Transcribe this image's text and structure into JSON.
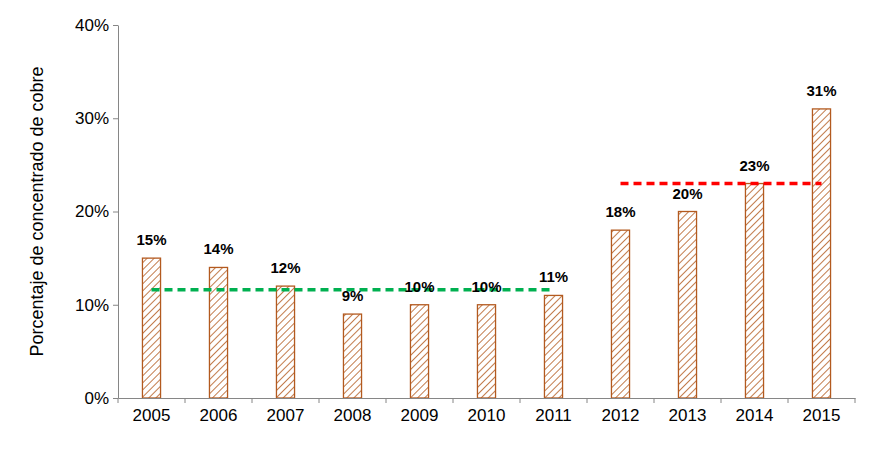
{
  "chart_data": {
    "type": "bar",
    "y_label": "Porcentaje de concentrado de cobre",
    "categories": [
      "2005",
      "2006",
      "2007",
      "2008",
      "2009",
      "2010",
      "2011",
      "2012",
      "2013",
      "2014",
      "2015"
    ],
    "values": [
      15,
      14,
      12,
      9,
      10,
      10,
      11,
      18,
      20,
      23,
      31
    ],
    "value_labels": [
      "15%",
      "14%",
      "12%",
      "9%",
      "10%",
      "10%",
      "11%",
      "18%",
      "20%",
      "23%",
      "31%"
    ],
    "color": "#b35a1f",
    "data_labels": true,
    "grid": false,
    "ylim": [
      0,
      40
    ],
    "yticks": [
      {
        "value": 0,
        "label": "0%"
      },
      {
        "value": 10,
        "label": "10%"
      },
      {
        "value": 20,
        "label": "20%"
      },
      {
        "value": 30,
        "label": "30%"
      },
      {
        "value": 40,
        "label": "40%"
      }
    ],
    "reference_lines": [
      {
        "value": 11.6,
        "from": "2005",
        "to": "2011",
        "color": "#00b050",
        "line_style": "dashed"
      },
      {
        "value": 23,
        "from": "2012",
        "to": "2015",
        "color": "#ff0000",
        "line_style": "dashed"
      }
    ]
  }
}
